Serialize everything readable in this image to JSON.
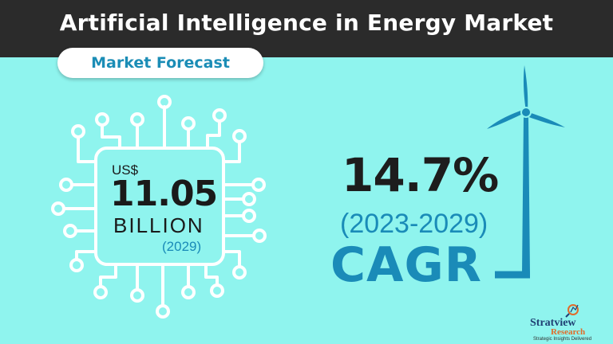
{
  "header": {
    "title": "Artificial Intelligence in Energy Market",
    "subtitle": "Market Forecast"
  },
  "market_size": {
    "currency": "US$",
    "value": "11.05",
    "unit": "BILLION",
    "year": "(2029)"
  },
  "growth": {
    "rate": "14.7%",
    "period": "(2023-2029)",
    "label": "CAGR"
  },
  "brand": {
    "name": "Stratview",
    "sub": "Research",
    "tagline": "Strategic Insights Delivered"
  },
  "colors": {
    "background": "#8ff4ee",
    "header": "#2b2b2b",
    "accent_blue": "#1a8bb8",
    "dark_text": "#1a1a1a"
  },
  "icons": [
    "circuit-chip-icon",
    "wind-turbine-icon",
    "logo-magnifier-icon"
  ]
}
